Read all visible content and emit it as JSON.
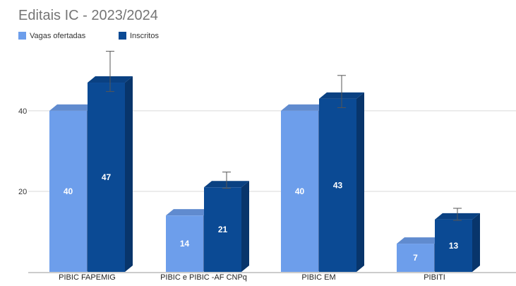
{
  "chart_data": {
    "type": "bar",
    "title": "Editais IC - 2023/2024",
    "categories": [
      "PIBIC FAPEMIG",
      "PIBIC e PIBIC -AF CNPq",
      "PIBIC EM",
      "PIBITI"
    ],
    "series": [
      {
        "name": "Vagas ofertadas",
        "values": [
          40,
          14,
          40,
          7
        ],
        "color": "#6d9eeb"
      },
      {
        "name": "Inscritos",
        "values": [
          47,
          21,
          43,
          13
        ],
        "color": "#0b4a94"
      }
    ],
    "error_bars": {
      "series": "Inscritos",
      "low": [
        44,
        20,
        40,
        12
      ],
      "high": [
        54,
        24,
        48,
        15
      ]
    },
    "y_ticks": [
      20,
      40
    ],
    "ylim": [
      0,
      57
    ],
    "grid": true,
    "legend_position": "top-left",
    "style": "3d-column"
  }
}
